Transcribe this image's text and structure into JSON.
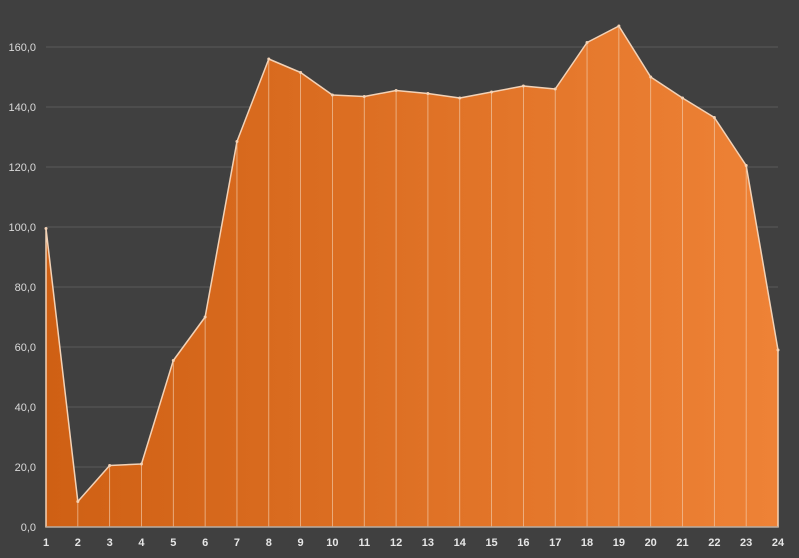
{
  "chart_data": {
    "type": "area",
    "title": "",
    "xlabel": "",
    "ylabel": "",
    "x": [
      1,
      2,
      3,
      4,
      5,
      6,
      7,
      8,
      9,
      10,
      11,
      12,
      13,
      14,
      15,
      16,
      17,
      18,
      19,
      20,
      21,
      22,
      23,
      24
    ],
    "series": [
      {
        "values": [
          99.5,
          8.5,
          20.5,
          21.0,
          55.5,
          70.0,
          128.5,
          156.0,
          151.5,
          144.0,
          143.5,
          145.5,
          144.5,
          143.0,
          145.0,
          147.0,
          146.0,
          161.5,
          167.0,
          150.0,
          143.0,
          136.5,
          120.5,
          59.0
        ]
      }
    ],
    "ylim": [
      0,
      160
    ],
    "yticks": [
      "0,0",
      "20,0",
      "40,0",
      "60,0",
      "80,0",
      "100,0",
      "120,0",
      "140,0",
      "160,0"
    ],
    "ytick_values": [
      0,
      20,
      40,
      60,
      80,
      100,
      120,
      140,
      160
    ],
    "xticks": [
      "1",
      "2",
      "3",
      "4",
      "5",
      "6",
      "7",
      "8",
      "9",
      "10",
      "11",
      "12",
      "13",
      "14",
      "15",
      "16",
      "17",
      "18",
      "19",
      "20",
      "21",
      "22",
      "23",
      "24"
    ],
    "grid": true,
    "legend": "none",
    "colors": {
      "background": "#404040",
      "fill_left": "#cf6014",
      "fill_right": "#ee8236",
      "outline": "#f3d2b6",
      "grid": "#5a5a5a",
      "tick_text": "#d9d9d9"
    }
  }
}
